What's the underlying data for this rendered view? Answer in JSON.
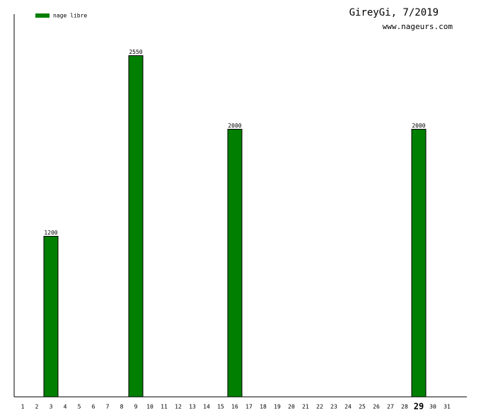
{
  "chart_data": {
    "type": "bar",
    "title": "GireyGi, 7/2019",
    "subtitle": "www.nageurs.com",
    "categories": [
      "1",
      "2",
      "3",
      "4",
      "5",
      "6",
      "7",
      "8",
      "9",
      "10",
      "11",
      "12",
      "13",
      "14",
      "15",
      "16",
      "17",
      "18",
      "19",
      "20",
      "21",
      "22",
      "23",
      "24",
      "25",
      "26",
      "27",
      "28",
      "29",
      "30",
      "31"
    ],
    "series": [
      {
        "name": "nage libre",
        "color": "#007f00",
        "values": [
          null,
          null,
          1200,
          null,
          null,
          null,
          null,
          null,
          2550,
          null,
          null,
          null,
          null,
          null,
          null,
          2000,
          null,
          null,
          null,
          null,
          null,
          null,
          null,
          null,
          null,
          null,
          null,
          null,
          2000,
          null,
          null
        ]
      }
    ],
    "ylim": [
      0,
      2860
    ],
    "highlight_category": "29"
  }
}
